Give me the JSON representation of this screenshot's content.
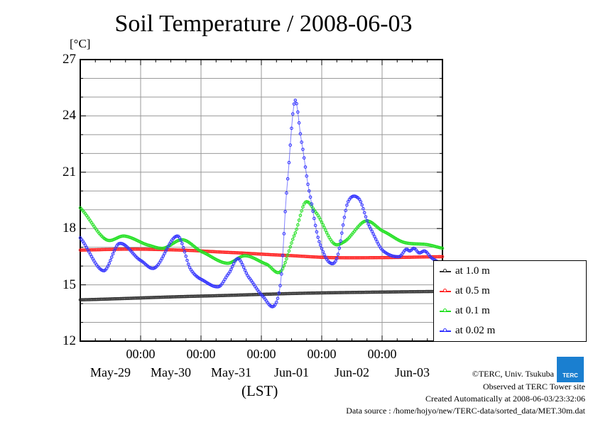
{
  "chart_data": {
    "type": "line",
    "title": "Soil Temperature / 2008-06-03",
    "ylabel": "[°C]",
    "xlabel": "(LST)",
    "ylim": [
      12,
      27
    ],
    "yticks": [
      "12",
      "15",
      "18",
      "21",
      "24",
      "27"
    ],
    "x_unit": "hours since May-29 00:00",
    "xlim": [
      0,
      144
    ],
    "xticks": [
      {
        "h": 24,
        "label": "00:00"
      },
      {
        "h": 48,
        "label": "00:00"
      },
      {
        "h": 72,
        "label": "00:00"
      },
      {
        "h": 96,
        "label": "00:00"
      },
      {
        "h": 120,
        "label": "00:00"
      }
    ],
    "day_labels": [
      "May-29",
      "May-30",
      "May-31",
      "Jun-01",
      "Jun-02",
      "Jun-03"
    ],
    "grid": true,
    "legend_position": "right-bottom outside",
    "series": [
      {
        "name": "at 1.0 m",
        "color": "#303030",
        "points": [
          [
            0,
            14.2
          ],
          [
            48,
            14.4
          ],
          [
            96,
            14.57
          ],
          [
            144,
            14.65
          ]
        ]
      },
      {
        "name": "at 0.5 m",
        "color": "#ff2020",
        "points": [
          [
            0,
            16.85
          ],
          [
            20,
            16.9
          ],
          [
            40,
            16.85
          ],
          [
            60,
            16.72
          ],
          [
            80,
            16.58
          ],
          [
            100,
            16.45
          ],
          [
            120,
            16.45
          ],
          [
            144,
            16.5
          ]
        ]
      },
      {
        "name": "at 0.1 m",
        "color": "#20e020",
        "points": [
          [
            0,
            19.1
          ],
          [
            10.4,
            17.4
          ],
          [
            17.5,
            17.6
          ],
          [
            27.4,
            17.1
          ],
          [
            33,
            16.95
          ],
          [
            40.7,
            17.4
          ],
          [
            48.5,
            16.75
          ],
          [
            58.4,
            16.15
          ],
          [
            65.5,
            16.55
          ],
          [
            74,
            16.1
          ],
          [
            79.6,
            15.7
          ],
          [
            85.3,
            17.7
          ],
          [
            89.5,
            19.4
          ],
          [
            93.7,
            18.85
          ],
          [
            100.8,
            17.2
          ],
          [
            105,
            17.3
          ],
          [
            113.5,
            18.4
          ],
          [
            120.5,
            17.85
          ],
          [
            129,
            17.25
          ],
          [
            137.5,
            17.15
          ],
          [
            144,
            16.95
          ]
        ]
      },
      {
        "name": "at 0.02 m",
        "color": "#3030ff",
        "points": [
          [
            0,
            17.5
          ],
          [
            9.3,
            15.75
          ],
          [
            15.5,
            17.2
          ],
          [
            24,
            16.3
          ],
          [
            29.6,
            15.9
          ],
          [
            38.7,
            17.6
          ],
          [
            44,
            15.8
          ],
          [
            48,
            15.3
          ],
          [
            55,
            14.9
          ],
          [
            59,
            15.6
          ],
          [
            62.7,
            16.4
          ],
          [
            67,
            15.4
          ],
          [
            72.5,
            14.4
          ],
          [
            76.8,
            13.85
          ],
          [
            79.6,
            15.05
          ],
          [
            82.2,
            20.2
          ],
          [
            85.3,
            24.8
          ],
          [
            88,
            22.6
          ],
          [
            91,
            20.0
          ],
          [
            95,
            17.3
          ],
          [
            99,
            16.2
          ],
          [
            102,
            16.4
          ],
          [
            106.4,
            19.4
          ],
          [
            110.7,
            19.6
          ],
          [
            115,
            18.1
          ],
          [
            120.5,
            16.8
          ],
          [
            126.8,
            16.5
          ],
          [
            129.6,
            16.9
          ],
          [
            131,
            16.8
          ],
          [
            132.7,
            16.95
          ],
          [
            134.7,
            16.7
          ],
          [
            137,
            16.8
          ],
          [
            140,
            16.4
          ],
          [
            144,
            16.1
          ]
        ]
      }
    ]
  },
  "credits": {
    "copyright": "©TERC, Univ. Tsukuba",
    "observed": "Observed at TERC Tower site",
    "created": "Created Automatically at 2008-06-03/23:32:06",
    "source": "Data source : /home/hojyo/new/TERC-data/sorted_data/MET.30m.dat",
    "logo_text": "TERC"
  }
}
